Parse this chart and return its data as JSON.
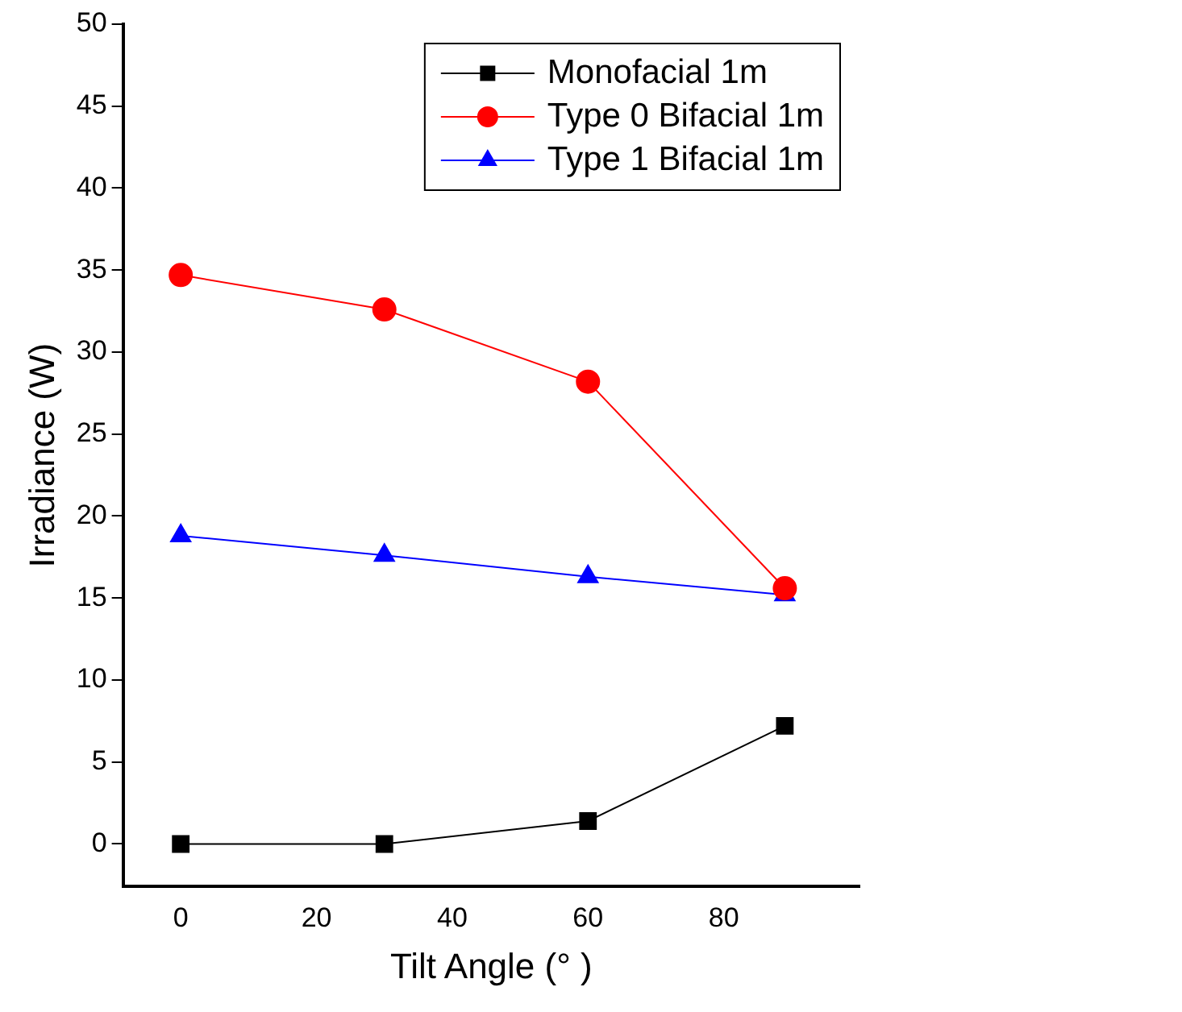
{
  "chart_data": {
    "type": "line",
    "xlabel": "Tilt Angle (° )",
    "ylabel": "Irradiance (W)",
    "x": [
      0,
      30,
      60,
      89
    ],
    "series": [
      {
        "name": "Monofacial 1m",
        "color": "#000000",
        "marker": "square",
        "values": [
          0,
          0,
          1.4,
          7.2
        ]
      },
      {
        "name": "Type 0 Bifacial 1m",
        "color": "#ff0000",
        "marker": "circle",
        "values": [
          34.7,
          32.6,
          28.2,
          15.6
        ]
      },
      {
        "name": "Type 1 Bifacial 1m",
        "color": "#0000ff",
        "marker": "triangle",
        "values": [
          18.8,
          17.6,
          16.3,
          15.2
        ]
      }
    ],
    "xlim": [
      -8.5,
      100
    ],
    "xticks": [
      0,
      20,
      40,
      60,
      80
    ],
    "ylim": [
      -2.6,
      50
    ],
    "yticks": [
      0,
      5,
      10,
      15,
      20,
      25,
      30,
      35,
      40,
      45,
      50
    ],
    "grid": false,
    "legend": "top right",
    "line_style": "solid"
  }
}
